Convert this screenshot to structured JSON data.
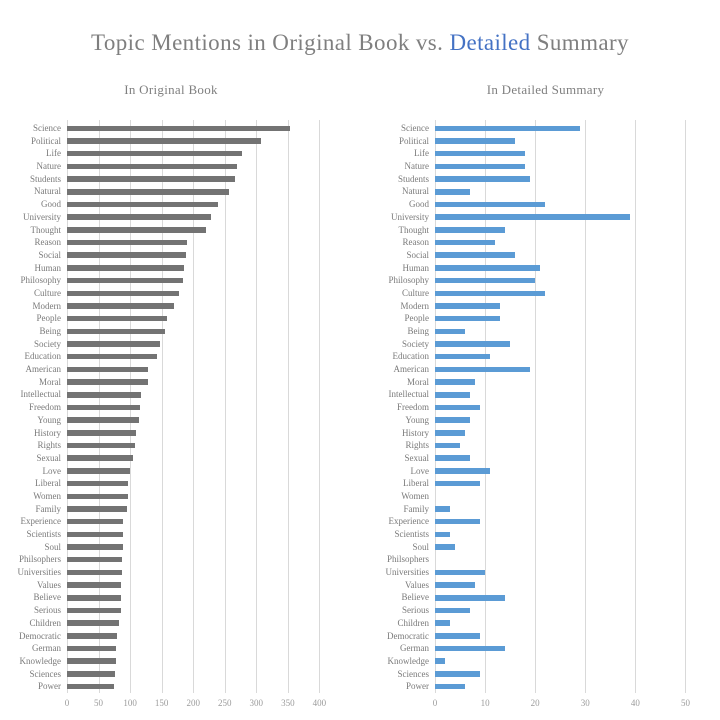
{
  "title": {
    "text_before": "Topic Mentions in Original Book vs. ",
    "highlight": "Detailed",
    "text_after": " Summary",
    "text_color": "#7f7f7f",
    "highlight_color": "#4472C4"
  },
  "chart_data": {
    "type": "bar",
    "orientation": "horizontal",
    "title": "Topic Mentions in Original Book vs. Detailed Summary",
    "grid": true,
    "legend": "none",
    "gridline_color": "#d9d9d9",
    "categories": [
      "Science",
      "Political",
      "Life",
      "Nature",
      "Students",
      "Natural",
      "Good",
      "University",
      "Thought",
      "Reason",
      "Social",
      "Human",
      "Philosophy",
      "Culture",
      "Modern",
      "People",
      "Being",
      "Society",
      "Education",
      "American",
      "Moral",
      "Intellectual",
      "Freedom",
      "Young",
      "History",
      "Rights",
      "Sexual",
      "Love",
      "Liberal",
      "Women",
      "Family",
      "Experience",
      "Scientists",
      "Soul",
      "Philsophers",
      "Universities",
      "Values",
      "Believe",
      "Serious",
      "Children",
      "Democratic",
      "German",
      "Knowledge",
      "Sciences",
      "Power"
    ],
    "series": [
      {
        "name": "In Original Book",
        "color": "#737373",
        "xlabel": "",
        "xlim": [
          0,
          420
        ],
        "tick_step": 50,
        "ticks": [
          0,
          50,
          100,
          150,
          200,
          250,
          300,
          350,
          400
        ],
        "values": [
          353,
          308,
          278,
          270,
          267,
          257,
          240,
          228,
          221,
          190,
          189,
          185,
          184,
          177,
          169,
          158,
          155,
          148,
          143,
          129,
          128,
          118,
          116,
          114,
          110,
          107,
          105,
          100,
          97,
          96,
          95,
          89,
          89,
          88,
          87,
          87,
          86,
          85,
          85,
          83,
          79,
          78,
          77,
          76,
          75
        ]
      },
      {
        "name": "In Detailed Summary",
        "color": "#5B9BD5",
        "xlabel": "",
        "xlim": [
          0,
          55.5
        ],
        "tick_step": 10,
        "ticks": [
          0,
          10,
          20,
          30,
          40,
          50
        ],
        "values": [
          29,
          16,
          18,
          18,
          19,
          7,
          22,
          39,
          14,
          12,
          16,
          21,
          20,
          22,
          13,
          13,
          6,
          15,
          11,
          19,
          8,
          7,
          9,
          7,
          6,
          5,
          7,
          11,
          9,
          0,
          3,
          9,
          3,
          4,
          0,
          10,
          8,
          14,
          7,
          3,
          9,
          14,
          2,
          9,
          6
        ]
      }
    ]
  }
}
